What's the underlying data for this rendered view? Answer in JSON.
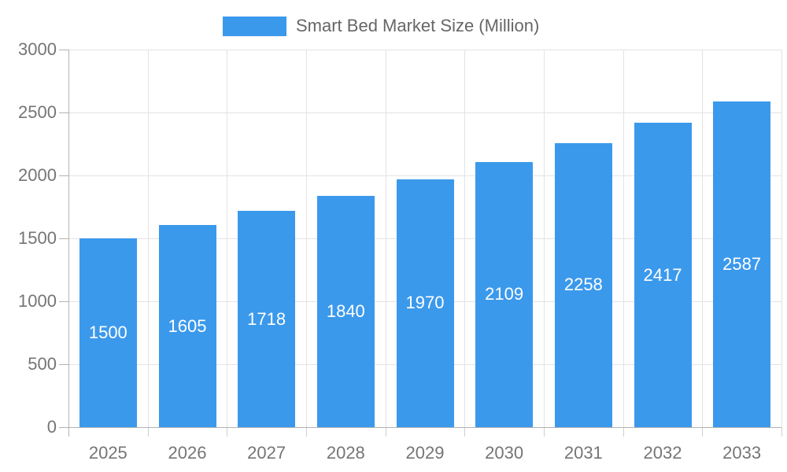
{
  "legend": {
    "label": "Smart Bed Market Size (Million)"
  },
  "colors": {
    "bar": "#3B99EC",
    "axis": "#b3b3b3",
    "grid": "#e3e3e3",
    "tick_label": "#757575",
    "bar_label": "#ffffff",
    "legend_text": "#666666",
    "background": "#ffffff"
  },
  "chart_data": {
    "type": "bar",
    "title": "Smart Bed Market Size (Million)",
    "series_name": "Smart Bed Market Size (Million)",
    "categories": [
      "2025",
      "2026",
      "2027",
      "2028",
      "2029",
      "2030",
      "2031",
      "2032",
      "2033"
    ],
    "values": [
      1500,
      1605,
      1718,
      1840,
      1970,
      2109,
      2258,
      2417,
      2587
    ],
    "xlabel": "",
    "ylabel": "",
    "ylim": [
      0,
      3000
    ],
    "yticks": [
      0,
      500,
      1000,
      1500,
      2000,
      2500,
      3000
    ],
    "grid": true,
    "legend_position": "top",
    "bar_labels": true
  }
}
